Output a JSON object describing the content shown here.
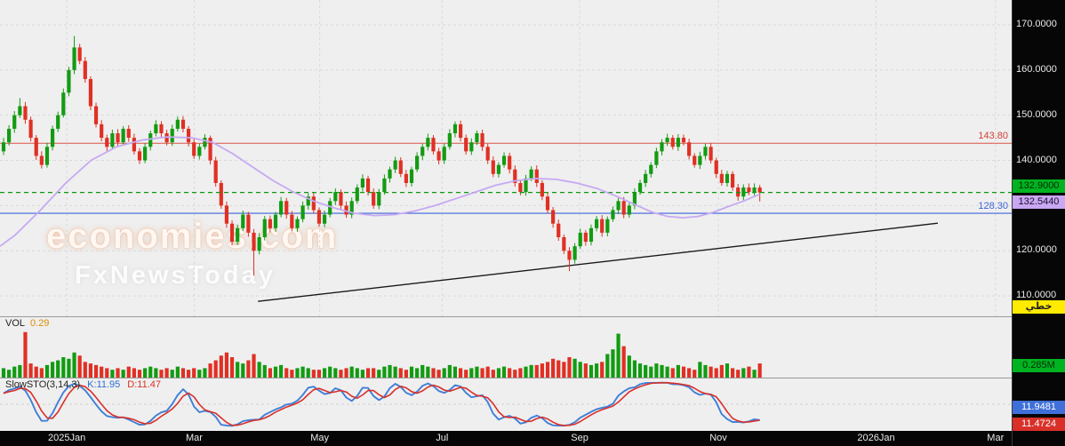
{
  "main": {
    "levels": {
      "resistance_label": "143.80",
      "support_label": "128.30",
      "last_price_badge": "132.9000",
      "ma_badge": "132.5440",
      "scale_badge": "خطي"
    },
    "watermark": {
      "line1": "economies.com",
      "line2": "FxNewsToday"
    }
  },
  "volume_panel": {
    "label": "VOL",
    "value": "0.29",
    "badge": "0.285M"
  },
  "sto_panel": {
    "label": "SlowSTO(3,14,3)",
    "k": "K:11.95",
    "d": "D:11.47",
    "k_badge": "11.9481",
    "d_badge": "11.4724"
  },
  "chart_data": {
    "type": "candlestick",
    "title": "Daily price chart with volume and Slow Stochastic panels",
    "price_axis": {
      "ylim": [
        105.5,
        175.5
      ],
      "ticks": [
        170,
        160,
        150,
        140,
        130,
        120,
        110
      ],
      "tick_labels": [
        "170.0000",
        "160.0000",
        "150.0000",
        "140.0000",
        "130.0000",
        "120.0000",
        "110.0000"
      ]
    },
    "time_axis": {
      "labels": [
        "2025Jan",
        "Mar",
        "May",
        "Jul",
        "Sep",
        "Nov",
        "2026Jan",
        "Mar"
      ],
      "fractions": [
        0.066,
        0.192,
        0.316,
        0.437,
        0.573,
        0.71,
        0.866,
        0.984
      ]
    },
    "levels": {
      "resistance": 143.8,
      "support": 128.3,
      "last_price": 132.9,
      "ma_value": 132.544
    },
    "ohlc_format": [
      "open",
      "high",
      "low",
      "close"
    ],
    "candles_ohlc": [
      [
        142,
        145,
        141.2,
        144
      ],
      [
        144,
        147.8,
        143.3,
        147
      ],
      [
        147,
        150.9,
        146.1,
        150
      ],
      [
        150,
        153.8,
        149.4,
        152
      ],
      [
        152,
        152.9,
        148.1,
        149
      ],
      [
        149,
        149.7,
        144.2,
        145
      ],
      [
        145,
        145.6,
        140.1,
        141
      ],
      [
        141,
        142,
        138.2,
        139
      ],
      [
        139,
        143.9,
        138.4,
        143
      ],
      [
        143,
        147.7,
        142.2,
        147
      ],
      [
        147,
        150.8,
        146.3,
        150
      ],
      [
        150,
        155.9,
        149.5,
        155
      ],
      [
        155,
        160.7,
        154.2,
        160
      ],
      [
        160,
        167.5,
        159.1,
        165
      ],
      [
        165,
        165.8,
        161.3,
        162
      ],
      [
        162,
        162.9,
        157.2,
        158
      ],
      [
        158,
        158.6,
        151.1,
        152
      ],
      [
        152,
        152.8,
        147.3,
        148
      ],
      [
        148,
        148.9,
        144.2,
        145
      ],
      [
        145,
        145.7,
        142.1,
        143
      ],
      [
        143,
        146.8,
        142.4,
        146
      ],
      [
        146,
        146.9,
        143.2,
        144
      ],
      [
        144,
        147.6,
        143.3,
        147
      ],
      [
        147,
        147.8,
        144.1,
        145
      ],
      [
        145,
        145.9,
        141.3,
        142
      ],
      [
        142,
        142.7,
        139.2,
        140
      ],
      [
        140,
        143.8,
        139.4,
        143
      ],
      [
        143,
        146.6,
        142.2,
        146
      ],
      [
        146,
        148.9,
        145.3,
        148
      ],
      [
        148,
        148.7,
        145.1,
        146
      ],
      [
        146,
        146.8,
        143.3,
        144
      ],
      [
        144,
        147.9,
        143.2,
        147
      ],
      [
        147,
        149.7,
        146.4,
        149
      ],
      [
        149,
        149.8,
        146.2,
        147
      ],
      [
        147,
        147.6,
        143.1,
        144
      ],
      [
        144,
        144.9,
        140.3,
        141
      ],
      [
        141,
        143.7,
        140.2,
        143
      ],
      [
        143,
        145.8,
        142.4,
        145
      ],
      [
        145,
        145.5,
        139.1,
        140
      ],
      [
        140,
        140.8,
        134.2,
        135
      ],
      [
        135,
        135.6,
        129.3,
        130
      ],
      [
        130,
        130.9,
        125.1,
        126
      ],
      [
        126,
        126.7,
        121.2,
        122
      ],
      [
        122,
        125.8,
        121.3,
        125
      ],
      [
        125,
        128.9,
        124.4,
        128
      ],
      [
        128,
        128.6,
        123.1,
        124
      ],
      [
        124,
        124.8,
        114.5,
        120
      ],
      [
        120,
        123.9,
        119.2,
        123
      ],
      [
        123,
        127.7,
        122.3,
        127
      ],
      [
        127,
        127.8,
        124.1,
        125
      ],
      [
        125,
        128.6,
        124.2,
        128
      ],
      [
        128,
        131.9,
        127.4,
        131
      ],
      [
        131,
        131.7,
        127.1,
        128
      ],
      [
        128,
        128.8,
        124.3,
        125
      ],
      [
        125,
        127.6,
        124.2,
        127
      ],
      [
        127,
        130.9,
        126.3,
        130
      ],
      [
        130,
        132.7,
        129.1,
        132
      ],
      [
        132,
        132.8,
        128.2,
        129
      ],
      [
        129,
        129.6,
        125.3,
        126
      ],
      [
        126,
        128.9,
        125.2,
        128
      ],
      [
        128,
        131.7,
        127.4,
        131
      ],
      [
        131,
        133.8,
        130.1,
        133
      ],
      [
        133,
        133.6,
        129.2,
        130
      ],
      [
        130,
        130.9,
        127.3,
        128
      ],
      [
        128,
        131.8,
        127.2,
        131
      ],
      [
        131,
        134.7,
        130.4,
        134
      ],
      [
        134,
        136.9,
        133.1,
        136
      ],
      [
        136,
        136.6,
        132.2,
        133
      ],
      [
        133,
        133.8,
        129.3,
        130
      ],
      [
        130,
        133.7,
        129.2,
        133
      ],
      [
        133,
        136.9,
        132.4,
        136
      ],
      [
        136,
        138.6,
        135.1,
        138
      ],
      [
        138,
        140.8,
        137.2,
        140
      ],
      [
        140,
        140.7,
        136.3,
        137
      ],
      [
        137,
        137.9,
        134.1,
        135
      ],
      [
        135,
        138.6,
        134.2,
        138
      ],
      [
        138,
        141.8,
        137.4,
        141
      ],
      [
        141,
        143.7,
        140.1,
        143
      ],
      [
        143,
        145.9,
        142.2,
        145
      ],
      [
        145,
        145.6,
        141.3,
        142
      ],
      [
        142,
        142.8,
        139.1,
        140
      ],
      [
        140,
        143.7,
        139.2,
        143
      ],
      [
        143,
        146.9,
        142.4,
        146
      ],
      [
        146,
        148.6,
        145.1,
        148
      ],
      [
        148,
        148.8,
        144.2,
        145
      ],
      [
        145,
        145.7,
        141.3,
        142
      ],
      [
        142,
        144.9,
        141.2,
        144
      ],
      [
        144,
        146.6,
        143.4,
        146
      ],
      [
        146,
        146.8,
        142.1,
        143
      ],
      [
        143,
        143.7,
        139.2,
        140
      ],
      [
        140,
        140.9,
        136.3,
        137
      ],
      [
        137,
        139.6,
        136.2,
        139
      ],
      [
        139,
        141.8,
        138.4,
        141
      ],
      [
        141,
        141.7,
        137.1,
        138
      ],
      [
        138,
        138.9,
        134.2,
        135
      ],
      [
        135,
        135.6,
        132.3,
        133
      ],
      [
        133,
        136.8,
        132.2,
        136
      ],
      [
        136,
        138.7,
        135.4,
        138
      ],
      [
        138,
        138.9,
        134.1,
        135
      ],
      [
        135,
        135.6,
        131.2,
        132
      ],
      [
        132,
        132.8,
        128.3,
        129
      ],
      [
        129,
        129.7,
        125.1,
        126
      ],
      [
        126,
        126.9,
        122.2,
        123
      ],
      [
        123,
        123.6,
        119.3,
        120
      ],
      [
        120,
        120.8,
        115.5,
        118
      ],
      [
        118,
        121.7,
        117.2,
        121
      ],
      [
        121,
        124.9,
        120.4,
        124
      ],
      [
        124,
        124.6,
        121.1,
        122
      ],
      [
        122,
        125.8,
        121.2,
        125
      ],
      [
        125,
        127.7,
        124.3,
        127
      ],
      [
        127,
        127.9,
        123.1,
        124
      ],
      [
        124,
        127.6,
        123.2,
        127
      ],
      [
        127,
        129.8,
        126.4,
        129
      ],
      [
        129,
        131.7,
        128.1,
        131
      ],
      [
        131,
        131.9,
        127.2,
        128
      ],
      [
        128,
        130.6,
        127.3,
        130
      ],
      [
        130,
        133.8,
        129.2,
        133
      ],
      [
        133,
        135.7,
        132.4,
        135
      ],
      [
        135,
        137.9,
        134.1,
        137
      ],
      [
        137,
        139.6,
        136.2,
        139
      ],
      [
        139,
        142.8,
        138.3,
        142
      ],
      [
        142,
        144.7,
        141.1,
        144
      ],
      [
        144,
        145.9,
        143.2,
        145
      ],
      [
        145,
        145.6,
        142.4,
        143
      ],
      [
        143,
        145.8,
        142.1,
        145
      ],
      [
        145,
        145.7,
        143.3,
        144
      ],
      [
        144,
        144.8,
        140.2,
        141
      ],
      [
        141,
        141.6,
        138.4,
        139
      ],
      [
        139,
        141.9,
        138.1,
        141
      ],
      [
        141,
        143.7,
        140.2,
        143
      ],
      [
        143,
        143.8,
        139.3,
        140
      ],
      [
        140,
        140.6,
        136.1,
        137
      ],
      [
        137,
        137.9,
        134.4,
        135
      ],
      [
        135,
        137.7,
        134.2,
        137
      ],
      [
        137,
        137.6,
        133.3,
        134
      ],
      [
        134,
        134.8,
        131.1,
        132
      ],
      [
        132,
        134.7,
        131.2,
        134
      ],
      [
        134,
        134.9,
        132.3,
        133
      ],
      [
        133,
        134.9,
        132.2,
        134
      ],
      [
        134,
        134.6,
        130.9,
        132.9
      ]
    ],
    "volumes": [
      0.06,
      0.05,
      0.07,
      0.08,
      0.29,
      0.09,
      0.07,
      0.06,
      0.08,
      0.1,
      0.11,
      0.13,
      0.12,
      0.16,
      0.14,
      0.1,
      0.09,
      0.08,
      0.07,
      0.06,
      0.05,
      0.06,
      0.05,
      0.07,
      0.06,
      0.05,
      0.06,
      0.07,
      0.06,
      0.05,
      0.06,
      0.05,
      0.07,
      0.06,
      0.05,
      0.06,
      0.05,
      0.06,
      0.09,
      0.11,
      0.14,
      0.16,
      0.13,
      0.1,
      0.09,
      0.11,
      0.15,
      0.1,
      0.08,
      0.06,
      0.07,
      0.08,
      0.06,
      0.05,
      0.06,
      0.07,
      0.06,
      0.05,
      0.05,
      0.06,
      0.07,
      0.06,
      0.05,
      0.06,
      0.07,
      0.06,
      0.05,
      0.06,
      0.06,
      0.05,
      0.07,
      0.08,
      0.07,
      0.06,
      0.05,
      0.07,
      0.06,
      0.08,
      0.07,
      0.06,
      0.05,
      0.06,
      0.08,
      0.07,
      0.06,
      0.05,
      0.06,
      0.07,
      0.06,
      0.07,
      0.05,
      0.06,
      0.07,
      0.06,
      0.05,
      0.06,
      0.07,
      0.08,
      0.08,
      0.09,
      0.1,
      0.12,
      0.11,
      0.1,
      0.13,
      0.12,
      0.1,
      0.09,
      0.08,
      0.09,
      0.1,
      0.15,
      0.18,
      0.28,
      0.2,
      0.14,
      0.11,
      0.09,
      0.08,
      0.07,
      0.09,
      0.08,
      0.07,
      0.06,
      0.08,
      0.07,
      0.06,
      0.05,
      0.1,
      0.08,
      0.07,
      0.06,
      0.08,
      0.09,
      0.06,
      0.05,
      0.06,
      0.07,
      0.05,
      0.09
    ],
    "volume_ylim": [
      0,
      0.3
    ],
    "ma_points": [
      [
        0.0,
        121.0
      ],
      [
        0.015,
        123.5
      ],
      [
        0.04,
        129.0
      ],
      [
        0.065,
        135.0
      ],
      [
        0.09,
        140.0
      ],
      [
        0.115,
        143.0
      ],
      [
        0.14,
        144.5
      ],
      [
        0.165,
        145.2
      ],
      [
        0.19,
        145.0
      ],
      [
        0.21,
        144.0
      ],
      [
        0.23,
        141.5
      ],
      [
        0.25,
        138.5
      ],
      [
        0.27,
        135.5
      ],
      [
        0.29,
        133.0
      ],
      [
        0.31,
        131.0
      ],
      [
        0.33,
        129.5
      ],
      [
        0.35,
        128.3
      ],
      [
        0.37,
        127.8
      ],
      [
        0.39,
        128.0
      ],
      [
        0.41,
        128.8
      ],
      [
        0.43,
        130.0
      ],
      [
        0.45,
        131.5
      ],
      [
        0.47,
        133.0
      ],
      [
        0.49,
        134.5
      ],
      [
        0.51,
        135.5
      ],
      [
        0.53,
        136.0
      ],
      [
        0.55,
        135.8
      ],
      [
        0.57,
        135.0
      ],
      [
        0.59,
        133.8
      ],
      [
        0.61,
        132.0
      ],
      [
        0.63,
        130.0
      ],
      [
        0.645,
        128.5
      ],
      [
        0.66,
        127.6
      ],
      [
        0.675,
        127.3
      ],
      [
        0.69,
        127.6
      ],
      [
        0.705,
        128.5
      ],
      [
        0.72,
        129.8
      ],
      [
        0.735,
        131.0
      ],
      [
        0.751,
        132.5
      ]
    ],
    "trendline": {
      "x1_frac": 0.255,
      "price1": 108.8,
      "x2_frac": 0.927,
      "price2": 126.1
    },
    "sto": {
      "k_period": 14,
      "k_smooth": 3,
      "d_period": 3,
      "range": [
        0,
        100
      ],
      "k_last": 11.95,
      "d_last": 11.47
    },
    "colors": {
      "up": "#129b12",
      "down": "#e03024",
      "ma": "#c6a9f2",
      "resistance": "#d9534a",
      "support": "#3c64d8",
      "last": "#0a9a0a",
      "k_line": "#3f7fd8",
      "d_line": "#d9302a",
      "trend": "#1a1a1a",
      "grid": "#d9d9d9"
    }
  }
}
